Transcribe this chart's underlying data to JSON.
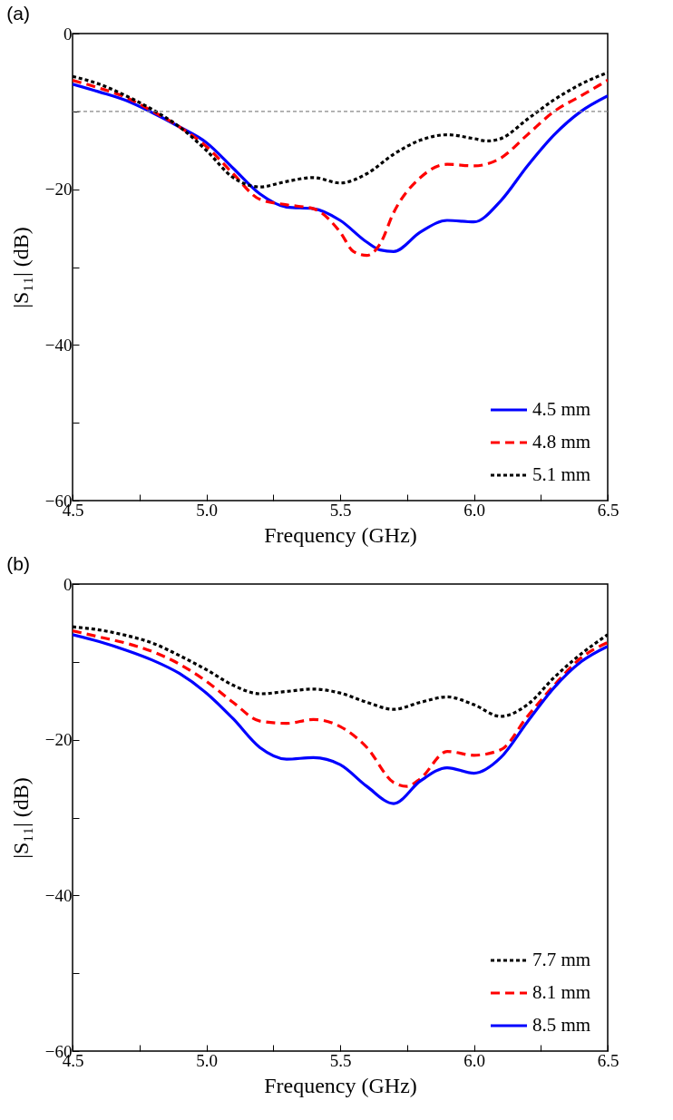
{
  "chart_data": [
    {
      "type": "line",
      "title": "(a)",
      "xlabel": "Frequency (GHz)",
      "ylabel": "|S₁₁| (dB)",
      "xlim": [
        4.5,
        6.5
      ],
      "ylim": [
        -60,
        0
      ],
      "xticks": [
        4.5,
        {
          "value": 4.75,
          "label": null
        },
        {
          "value": 5,
          "label": "5.0"
        },
        {
          "value": 5.25,
          "label": null
        },
        5.5,
        {
          "value": 5.75,
          "label": null
        },
        {
          "value": 6,
          "label": "6.0"
        },
        {
          "value": 6.25,
          "label": null
        },
        6.5
      ],
      "yticks": [
        {
          "value": 0,
          "label": "0"
        },
        {
          "value": -10,
          "label": null
        },
        {
          "value": -20,
          "label": "−20"
        },
        {
          "value": -30,
          "label": null
        },
        {
          "value": -40,
          "label": "−40"
        },
        {
          "value": -50,
          "label": null
        },
        {
          "value": -60,
          "label": "−60"
        }
      ],
      "grid": false,
      "legend": "bottom right",
      "ref_lines": [
        {
          "axis": "y",
          "value": -10,
          "color": "#888888",
          "line_style": "dotted"
        }
      ],
      "series": [
        {
          "name": "4.5 mm",
          "color": "#0000ff",
          "line_style": "solid",
          "x": [
            4.5,
            4.6,
            4.7,
            4.8,
            4.9,
            5.0,
            5.1,
            5.2,
            5.3,
            5.4,
            5.5,
            5.6,
            5.65,
            5.7,
            5.8,
            5.9,
            6.0,
            6.1,
            6.2,
            6.3,
            6.4,
            6.5
          ],
          "values": [
            -6.5,
            -7.5,
            -8.6,
            -10.2,
            -12,
            -14,
            -17.3,
            -20.6,
            -22.3,
            -22.5,
            -24,
            -26.8,
            -27.8,
            -28,
            -25.5,
            -24,
            -24.2,
            -21.5,
            -17,
            -13,
            -10,
            -8
          ]
        },
        {
          "name": "4.8 mm",
          "color": "#ff0000",
          "line_style": "dashed",
          "x": [
            4.5,
            4.6,
            4.7,
            4.8,
            4.9,
            5.0,
            5.1,
            5.2,
            5.3,
            5.4,
            5.5,
            5.55,
            5.6,
            5.65,
            5.7,
            5.8,
            5.9,
            6.0,
            6.1,
            6.2,
            6.3,
            6.4,
            6.5
          ],
          "values": [
            -6,
            -7,
            -8.2,
            -10,
            -12,
            -14.5,
            -18,
            -21.3,
            -22,
            -22.5,
            -25.5,
            -28,
            -28.5,
            -27,
            -23,
            -18.5,
            -16.8,
            -17,
            -16,
            -13,
            -10,
            -8,
            -6
          ]
        },
        {
          "name": "5.1 mm",
          "color": "#000000",
          "line_style": "dotted",
          "x": [
            4.5,
            4.6,
            4.7,
            4.8,
            4.9,
            5.0,
            5.1,
            5.2,
            5.3,
            5.4,
            5.5,
            5.6,
            5.7,
            5.8,
            5.9,
            6.0,
            6.05,
            6.1,
            6.2,
            6.3,
            6.4,
            6.5
          ],
          "values": [
            -5.5,
            -6.5,
            -8,
            -9.8,
            -12,
            -15,
            -18.5,
            -19.7,
            -19,
            -18.5,
            -19.2,
            -18,
            -15.5,
            -13.7,
            -13,
            -13.5,
            -13.8,
            -13.5,
            -11,
            -8.5,
            -6.5,
            -5
          ]
        }
      ]
    },
    {
      "type": "line",
      "title": "(b)",
      "xlabel": "Frequency (GHz)",
      "ylabel": "|S₁₁| (dB)",
      "xlim": [
        4.5,
        6.5
      ],
      "ylim": [
        -60,
        0
      ],
      "xticks": [
        4.5,
        {
          "value": 4.75,
          "label": null
        },
        {
          "value": 5,
          "label": "5.0"
        },
        {
          "value": 5.25,
          "label": null
        },
        5.5,
        {
          "value": 5.75,
          "label": null
        },
        {
          "value": 6,
          "label": "6.0"
        },
        {
          "value": 6.25,
          "label": null
        },
        6.5
      ],
      "yticks": [
        {
          "value": 0,
          "label": "0"
        },
        {
          "value": -10,
          "label": null
        },
        {
          "value": -20,
          "label": "−20"
        },
        {
          "value": -30,
          "label": null
        },
        {
          "value": -40,
          "label": "−40"
        },
        {
          "value": -50,
          "label": null
        },
        {
          "value": -60,
          "label": "−60"
        }
      ],
      "grid": false,
      "legend": "bottom right",
      "series": [
        {
          "name": "7.7 mm",
          "color": "#000000",
          "line_style": "dotted",
          "x": [
            4.5,
            4.6,
            4.7,
            4.8,
            4.9,
            5.0,
            5.1,
            5.2,
            5.3,
            5.4,
            5.5,
            5.6,
            5.7,
            5.8,
            5.9,
            6.0,
            6.1,
            6.2,
            6.3,
            6.4,
            6.5
          ],
          "values": [
            -5.5,
            -5.9,
            -6.6,
            -7.6,
            -9.2,
            -11,
            -13,
            -14.1,
            -13.8,
            -13.5,
            -14,
            -15.2,
            -16.1,
            -15.2,
            -14.5,
            -15.5,
            -17,
            -15.5,
            -12,
            -9,
            -6.5
          ]
        },
        {
          "name": "8.1 mm",
          "color": "#ff0000",
          "line_style": "dashed",
          "x": [
            4.5,
            4.6,
            4.7,
            4.8,
            4.9,
            5.0,
            5.1,
            5.2,
            5.3,
            5.4,
            5.5,
            5.6,
            5.7,
            5.75,
            5.8,
            5.9,
            6.0,
            6.1,
            6.2,
            6.3,
            6.4,
            6.5
          ],
          "values": [
            -6,
            -6.8,
            -7.6,
            -8.7,
            -10.3,
            -12.5,
            -15.2,
            -17.6,
            -17.9,
            -17.4,
            -18.3,
            -21,
            -25.5,
            -26,
            -25,
            -21.5,
            -22,
            -21.3,
            -17,
            -13,
            -9.5,
            -7.5
          ]
        },
        {
          "name": "8.5 mm",
          "color": "#0000ff",
          "line_style": "solid",
          "x": [
            4.5,
            4.6,
            4.7,
            4.8,
            4.9,
            5.0,
            5.1,
            5.2,
            5.3,
            5.4,
            5.5,
            5.6,
            5.7,
            5.8,
            5.9,
            6.0,
            6.1,
            6.2,
            6.3,
            6.4,
            6.5
          ],
          "values": [
            -6.5,
            -7.4,
            -8.5,
            -9.8,
            -11.5,
            -14,
            -17.3,
            -21,
            -22.5,
            -22.3,
            -23.2,
            -26,
            -28.2,
            -25.3,
            -23.6,
            -24.3,
            -22.3,
            -17.7,
            -13.3,
            -10,
            -8
          ]
        }
      ]
    }
  ]
}
